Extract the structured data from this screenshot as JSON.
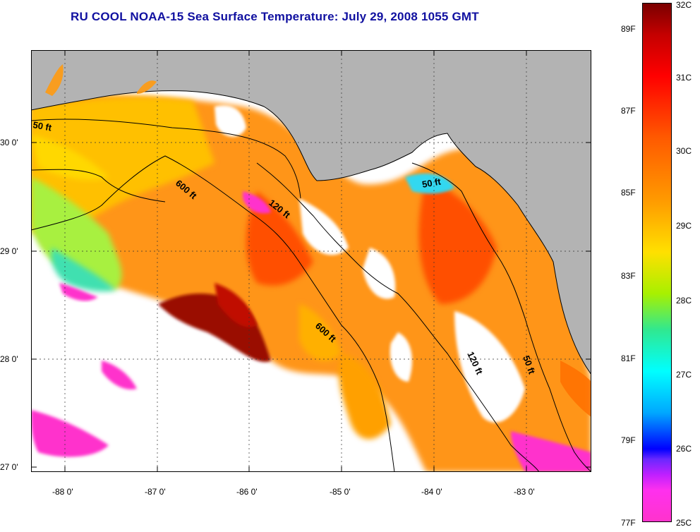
{
  "title": "RU COOL  NOAA-15  Sea Surface Temperature:  July 29, 2008 1055 GMT",
  "map": {
    "lon_ticks": [
      "-88 0'",
      "-87 0'",
      "-86 0'",
      "-85 0'",
      "-84 0'",
      "-83 0'"
    ],
    "lat_ticks": [
      "30 0'",
      "29 0'",
      "28 0'",
      "27 0'"
    ],
    "contours": [
      "50 ft",
      "600 ft",
      "120 ft",
      "50 ft",
      "600 ft",
      "120 ft",
      "50 ft"
    ]
  },
  "colorbar": {
    "celsius": [
      "32C",
      "31C",
      "30C",
      "29C",
      "28C",
      "27C",
      "26C",
      "25C"
    ],
    "fahrenheit": [
      "89F",
      "87F",
      "85F",
      "83F",
      "81F",
      "79F",
      "77F"
    ]
  },
  "colors": {
    "title": "#1010a0",
    "land": "#b3b3b3",
    "cloud": "#ffffff",
    "hot": "#8b0000",
    "warm": "#ff6a00",
    "mild": "#ffd000",
    "cool": "#40e0a0",
    "cold": "#ff33cc"
  }
}
